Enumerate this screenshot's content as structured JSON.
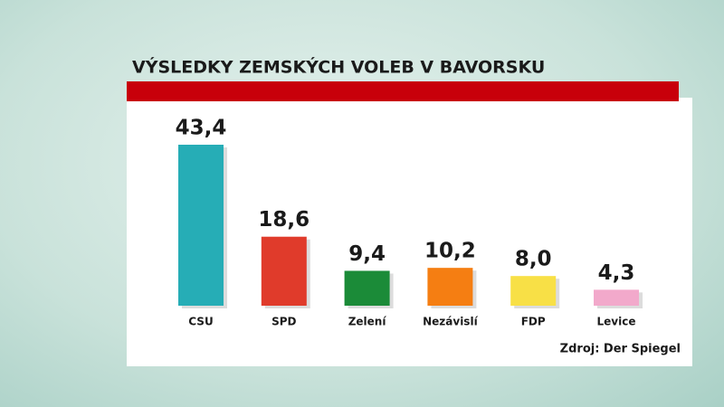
{
  "chart_data": {
    "type": "bar",
    "title": "VÝSLEDKY ZEMSKÝCH VOLEB V BAVORSKU",
    "categories": [
      "CSU",
      "SPD",
      "Zelení",
      "Nezávislí",
      "FDP",
      "Levice"
    ],
    "values": [
      43.4,
      18.6,
      9.4,
      10.2,
      8.0,
      4.3
    ],
    "value_labels": [
      "43,4",
      "18,6",
      "9,4",
      "10,2",
      "8,0",
      "4,3"
    ],
    "colors": [
      "#26adb6",
      "#e03b2b",
      "#1b8b38",
      "#f57e12",
      "#f8e046",
      "#f2a9cb"
    ],
    "source": "Zdroj: Der Spiegel"
  }
}
